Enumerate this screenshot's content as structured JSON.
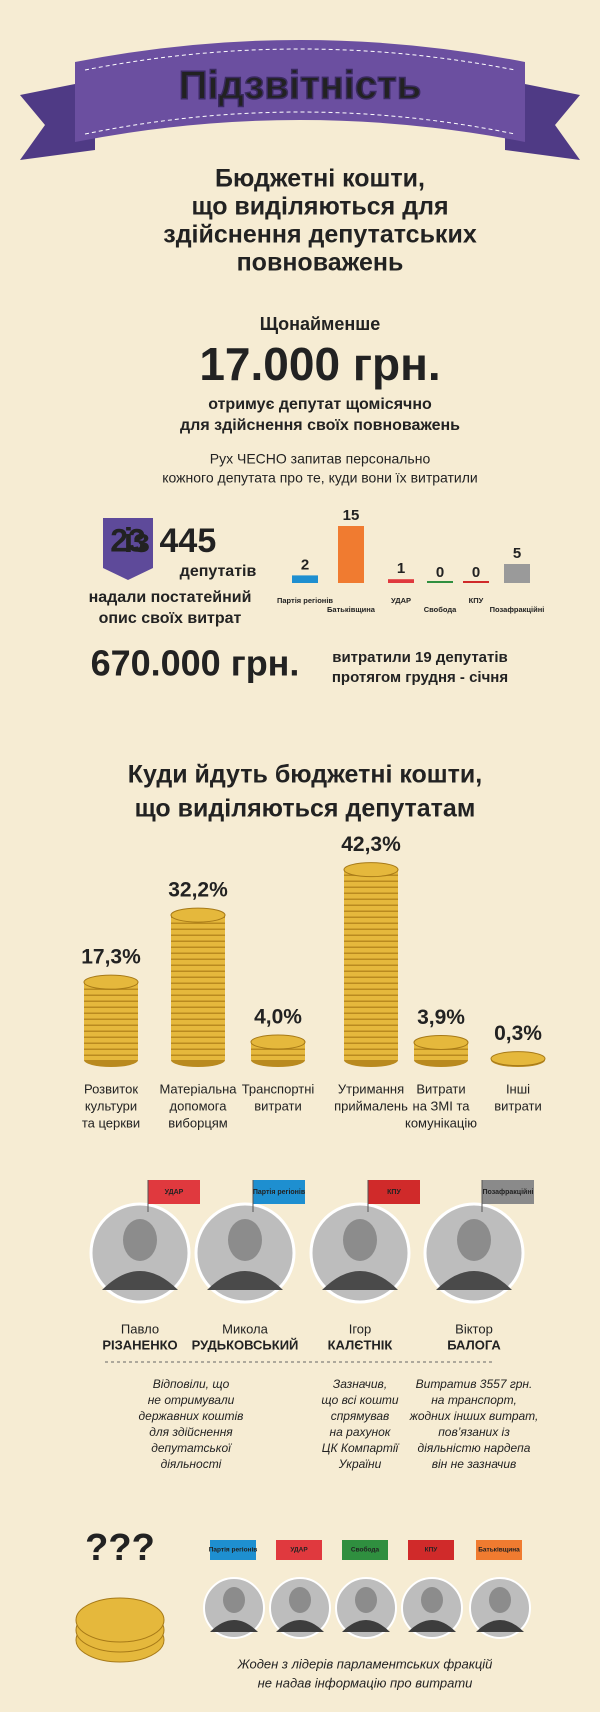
{
  "banner": "Підзвітність",
  "heading": [
    "Бюджетні кошти,",
    "що виділяються для",
    "здійснення депутатських",
    "повноважень"
  ],
  "intro": {
    "prefix": "Щонайменше",
    "amount": "17.000 грн.",
    "text": [
      "отримує депутат щомісячно",
      "для здійснення своїх повноважень"
    ],
    "note": [
      "Рух ЧЕСНО запитав персонально",
      "кожного депутата про те, куди вони їх витратили"
    ]
  },
  "respondents": {
    "count": "23",
    "total": "із 445",
    "unit": "депутатів",
    "text": [
      "надали постатейний",
      "опис своїх витрат"
    ]
  },
  "spent": {
    "amount": "670.000 грн.",
    "text": [
      "витратили 19 депутатів",
      "протягом грудня - січня"
    ]
  },
  "heading2": [
    "Куди йдуть бюджетні кошти,",
    "що виділяються депутатам"
  ],
  "chart_data": [
    {
      "type": "bar",
      "categories": [
        "Партія регіонів",
        "Батьківщина",
        "УДАР",
        "Свобода",
        "КПУ",
        "Позафракційні"
      ],
      "values": [
        2,
        15,
        1,
        0,
        0,
        5
      ],
      "colors": [
        "#1e8fd0",
        "#f07b30",
        "#e0393e",
        "#2f8f3f",
        "#d02a2a",
        "#9a9a9a"
      ]
    },
    {
      "type": "bar",
      "categories": [
        [
          "Розвиток",
          "культури",
          "та церкви"
        ],
        [
          "Матеріальна",
          "допомога",
          "виборцям"
        ],
        [
          "Транспортні",
          "витрати"
        ],
        [
          "Утримання",
          "приймалень"
        ],
        [
          "Витрати",
          "на ЗМІ та",
          "комунікацію"
        ],
        [
          "Інші",
          "витрати"
        ]
      ],
      "values": [
        17.3,
        32.2,
        4.0,
        42.3,
        3.9,
        0.3
      ],
      "value_labels": [
        "17,3%",
        "32,2%",
        "4,0%",
        "42,3%",
        "3,9%",
        "0,3%"
      ],
      "color": "#e5b83c"
    }
  ],
  "people": [
    {
      "first": "Павло",
      "last": "РІЗАНЕНКО",
      "party": "УДАР",
      "color": "#e0393e"
    },
    {
      "first": "Микола",
      "last": "РУДЬКОВСЬКИЙ",
      "party": "Партія регіонів",
      "color": "#1e8fd0"
    },
    {
      "first": "Ігор",
      "last": "КАЛЄТНІК",
      "party": "КПУ",
      "color": "#d02a2a"
    },
    {
      "first": "Віктор",
      "last": "БАЛОГА",
      "party": "Позафракційні",
      "color": "#8a8a8a"
    }
  ],
  "notes": [
    [
      "Відповіли, що",
      "не отримували",
      "державних коштів",
      "для здійснення",
      "депутатської",
      "діяльності"
    ],
    [
      "Зазначив,",
      "що всі кошти",
      "спрямував",
      "на рахунок",
      "ЦК Компартії",
      "України"
    ],
    [
      "Витратив 3557 грн.",
      "на транспорт,",
      "жодних інших витрат,",
      "пов’язаних із",
      "діяльністю нардепа",
      "він не зазначив"
    ]
  ],
  "question": "???",
  "leaders": [
    {
      "party": "Партія регіонів",
      "color": "#1e8fd0"
    },
    {
      "party": "УДАР",
      "color": "#e0393e"
    },
    {
      "party": "Свобода",
      "color": "#2f8f3f"
    },
    {
      "party": "КПУ",
      "color": "#d02a2a"
    },
    {
      "party": "Батьківщина",
      "color": "#f07b30"
    }
  ],
  "footer": [
    "Жоден з лідерів парламентських фракцій",
    "не надав інформацію про витрати"
  ]
}
